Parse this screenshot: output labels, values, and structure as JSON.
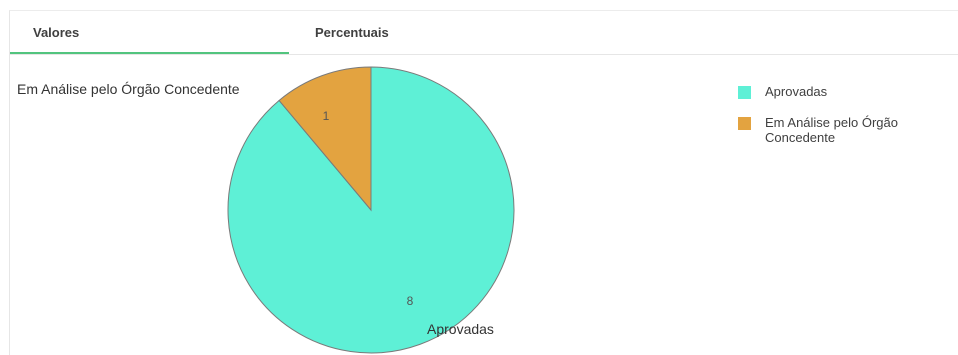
{
  "tabs": [
    {
      "label": "Valores",
      "active": true
    },
    {
      "label": "Percentuais",
      "active": false
    }
  ],
  "chart_data": {
    "type": "pie",
    "categories": [
      "Aprovadas",
      "Em Análise pelo Órgão Concedente"
    ],
    "values": [
      8,
      1
    ],
    "colors": [
      "#5ef0d6",
      "#e3a340"
    ],
    "data_labels": [
      "8",
      "1"
    ],
    "category_labels": [
      "Aprovadas",
      "Em Análise pelo Órgão Concedente"
    ],
    "legend": "right",
    "title": ""
  }
}
